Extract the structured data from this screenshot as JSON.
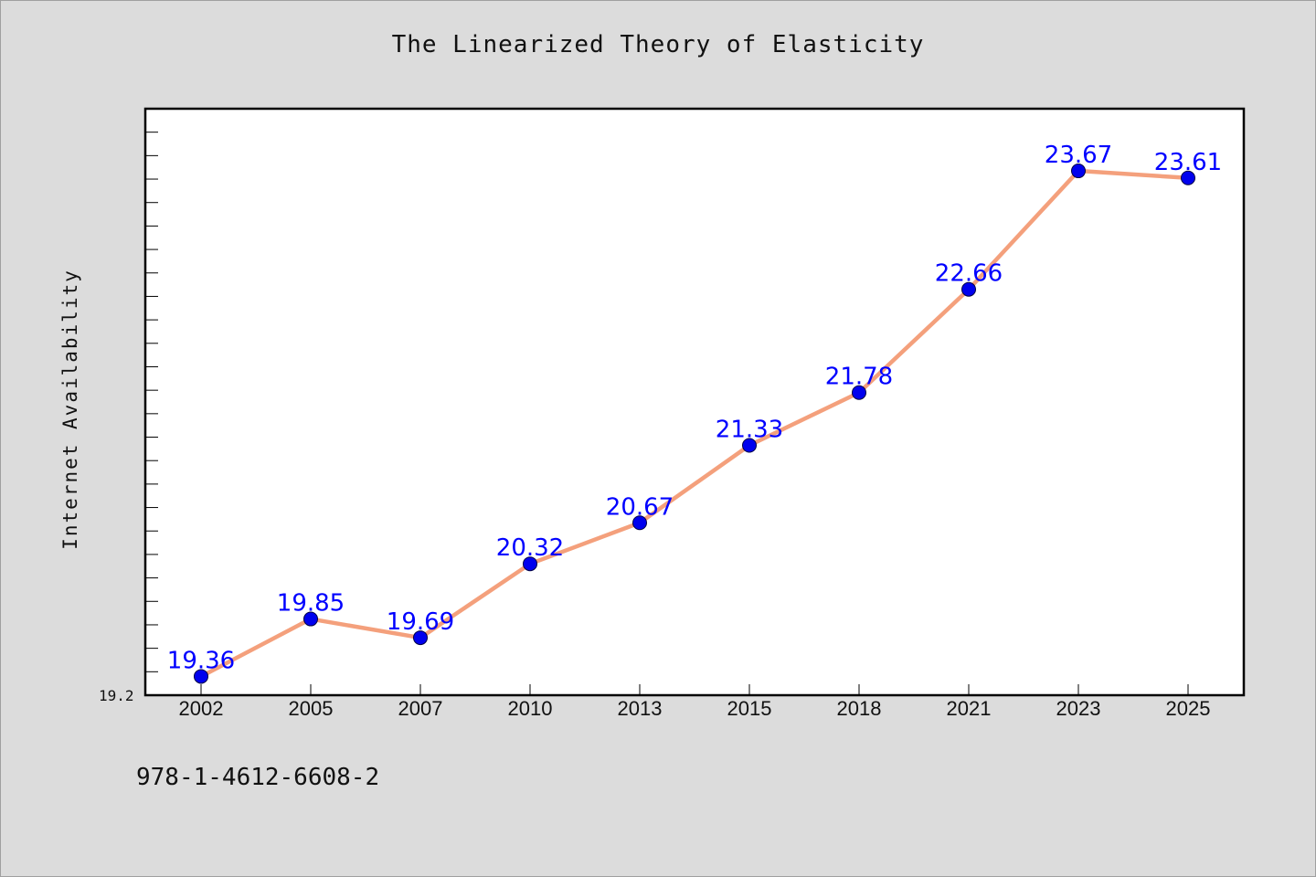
{
  "chart_data": {
    "type": "line",
    "title": "The Linearized Theory of Elasticity",
    "xlabel": "",
    "ylabel": "Internet Availability",
    "categories": [
      "2002",
      "2005",
      "2007",
      "2010",
      "2013",
      "2015",
      "2018",
      "2021",
      "2023",
      "2025"
    ],
    "series": [
      {
        "values": [
          19.36,
          19.85,
          19.69,
          20.32,
          20.67,
          21.33,
          21.78,
          22.66,
          23.67,
          23.61
        ],
        "data_labels": [
          "19.36",
          "19.85",
          "19.69",
          "20.32",
          "20.67",
          "21.33",
          "21.78",
          "22.66",
          "23.67",
          "23.61"
        ]
      }
    ],
    "y_tick_label": "19.2",
    "ylim": [
      19.2,
      24.2
    ],
    "grid": false,
    "legend": "none",
    "colors": {
      "line": "#f4a07c",
      "marker": "#0000ee",
      "label": "#0000ff",
      "plot_background": "#ffffff",
      "page_background": "#dcdcdc"
    }
  },
  "footer": {
    "note": "978-1-4612-6608-2"
  }
}
